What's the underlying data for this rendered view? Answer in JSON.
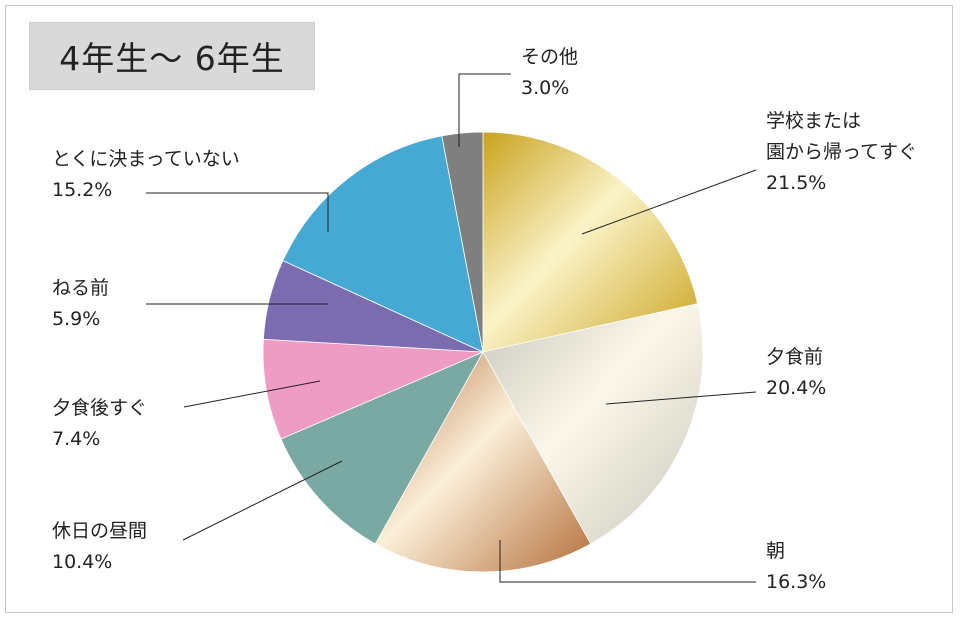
{
  "header": {
    "title": "4年生〜 6年生"
  },
  "chart_data": {
    "type": "pie",
    "start_angle_deg": 0,
    "direction": "clockwise",
    "slices": [
      {
        "label_lines": [
          "学校または",
          "園から帰ってすぐ"
        ],
        "value": 21.5,
        "value_label": "21.5%",
        "color": "#d4b43e",
        "gradient": [
          "#c9a21c",
          "#fbf3c8"
        ]
      },
      {
        "label_lines": [
          "夕食前"
        ],
        "value": 20.4,
        "value_label": "20.4%",
        "color": "#d6d2c4",
        "gradient": [
          "#c9c6bb",
          "#fbf7ea"
        ]
      },
      {
        "label_lines": [
          "朝"
        ],
        "value": 16.3,
        "value_label": "16.3%",
        "color": "#d39a64",
        "gradient": [
          "#b5703b",
          "#fbefd9"
        ]
      },
      {
        "label_lines": [
          "休日の昼間"
        ],
        "value": 10.4,
        "value_label": "10.4%",
        "color": "#7aa8a3"
      },
      {
        "label_lines": [
          "夕食後すぐ"
        ],
        "value": 7.4,
        "value_label": "7.4%",
        "color": "#ee9cc3"
      },
      {
        "label_lines": [
          "ねる前"
        ],
        "value": 5.9,
        "value_label": "5.9%",
        "color": "#7b6cb0"
      },
      {
        "label_lines": [
          "とくに決まっていない"
        ],
        "value": 15.2,
        "value_label": "15.2%",
        "color": "#45a9d3"
      },
      {
        "label_lines": [
          "その他"
        ],
        "value": 3.0,
        "value_label": "3.0%",
        "color": "#7f7f7f"
      }
    ]
  }
}
